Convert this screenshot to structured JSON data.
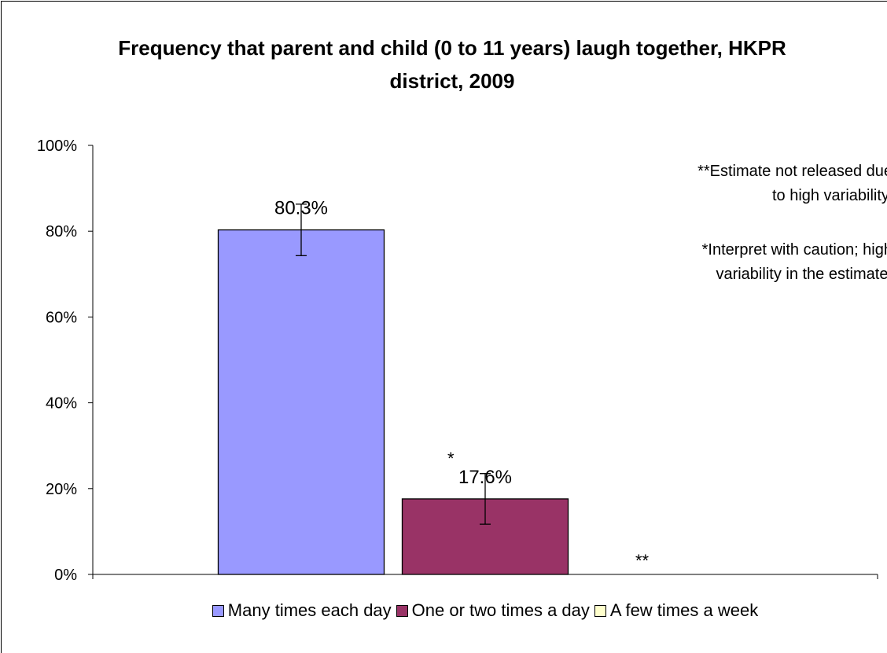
{
  "chart_data": {
    "type": "bar",
    "title": "Frequency that parent and child (0 to 11 years) laugh together, HKPR district, 2009",
    "categories": [
      null
    ],
    "series": [
      {
        "name": "Many times each day",
        "color": "#9999ff",
        "values": [
          80.3
        ],
        "errors": [
          6.0
        ],
        "value_labels": [
          "80.3%"
        ]
      },
      {
        "name": "One or two times a day",
        "color": "#993366",
        "values": [
          17.6
        ],
        "errors": [
          5.9
        ],
        "value_labels": [
          "17.6%"
        ],
        "marker": "*"
      },
      {
        "name": "A few times a week",
        "color": "#ffffcc",
        "values": [
          null
        ],
        "marker": "**"
      }
    ],
    "ylim": [
      0,
      100
    ],
    "yticks": [
      {
        "value": 0,
        "label": "0%"
      },
      {
        "value": 20,
        "label": "20%"
      },
      {
        "value": 40,
        "label": "40%"
      },
      {
        "value": 60,
        "label": "60%"
      },
      {
        "value": 80,
        "label": "80%"
      },
      {
        "value": 100,
        "label": "100%"
      }
    ],
    "annotations": [
      [
        "**Estimate not released due",
        "to high variability."
      ],
      [
        "*Interpret with caution; high",
        "variability in the estimate."
      ]
    ],
    "legend": "bottom"
  }
}
